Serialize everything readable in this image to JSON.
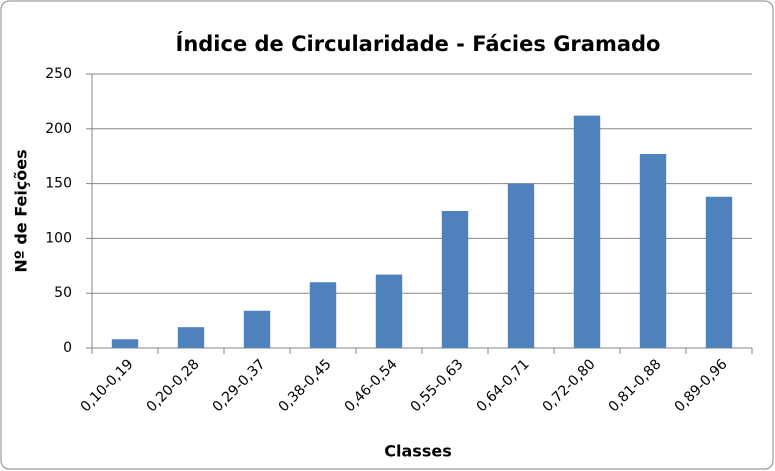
{
  "chart_data": {
    "type": "bar",
    "title": "Índice de Circularidade - Fácies Gramado",
    "x_label": "Classes",
    "y_label": "Nº de Feições",
    "categories": [
      "0,10-0,19",
      "0,20-0,28",
      "0,29-0,37",
      "0,38-0,45",
      "0,46-0,54",
      "0,55-0,63",
      "0,64-0,71",
      "0,72-0,80",
      "0,81-0,88",
      "0,89-0,96"
    ],
    "values": [
      8,
      19,
      34,
      60,
      67,
      125,
      150,
      212,
      177,
      138
    ],
    "color": "#4f81bd",
    "ylim": [
      0,
      250
    ],
    "yticks": [
      0,
      50,
      100,
      150,
      200,
      250
    ],
    "grid": true
  }
}
